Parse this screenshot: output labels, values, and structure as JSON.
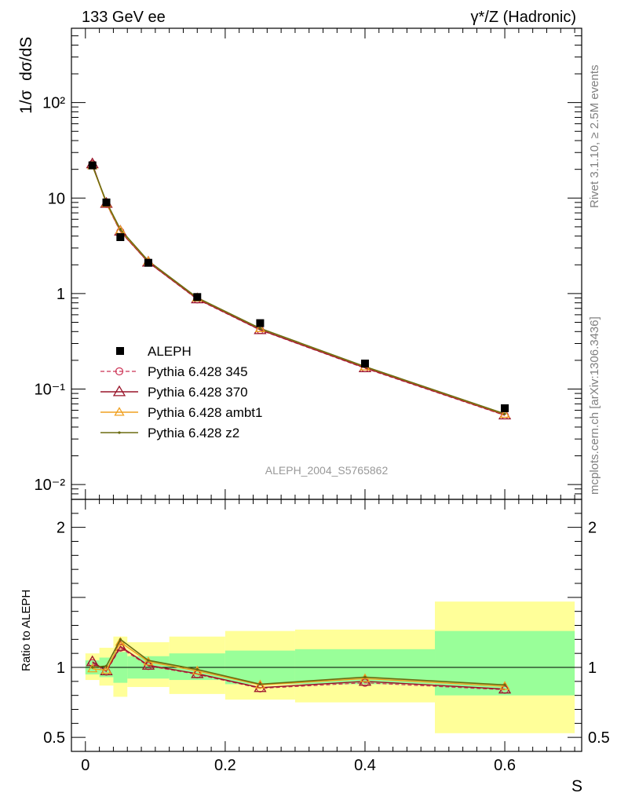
{
  "header": {
    "left_title": "133 GeV ee",
    "right_title": "γ*/Z (Hadronic)"
  },
  "side_text": {
    "rivet": "Rivet 3.1.10, ≥ 2.5M events",
    "mcplots": "mcplots.cern.ch [arXiv:1306.3436]"
  },
  "analysis_label": "ALEPH_2004_S5765862",
  "colors": {
    "data": "#000000",
    "p345": "#cc3355",
    "p370": "#99152a",
    "ambt1": "#f0a020",
    "z2": "#6b6b10",
    "band_inner": "#99ff99",
    "band_outer": "#ffff99"
  },
  "chart_data": [
    {
      "type": "line",
      "panel": "main",
      "ylabel": "1/σ  dσ/dS",
      "yscale": "log",
      "ylim": [
        0.007,
        600
      ],
      "xlim": [
        -0.02,
        0.71
      ],
      "y_tick_labels": [
        "10⁻²",
        "10⁻¹",
        "1",
        "10",
        "10²"
      ],
      "y_tick_values": [
        0.01,
        0.1,
        1,
        10,
        100
      ],
      "legend_placement": "lower-left",
      "x": [
        0.01,
        0.03,
        0.05,
        0.09,
        0.16,
        0.25,
        0.4,
        0.6
      ],
      "x_edges": [
        [
          0.0,
          0.02
        ],
        [
          0.02,
          0.04
        ],
        [
          0.04,
          0.06
        ],
        [
          0.06,
          0.12
        ],
        [
          0.12,
          0.2
        ],
        [
          0.2,
          0.3
        ],
        [
          0.3,
          0.5
        ],
        [
          0.5,
          0.7
        ]
      ],
      "series": [
        {
          "name": "ALEPH",
          "style": "data",
          "values": [
            22.0,
            9.0,
            3.9,
            2.1,
            0.92,
            0.49,
            0.185,
            0.063
          ]
        },
        {
          "name": "Pythia 6.428 345",
          "style": "p345",
          "values": [
            22.7,
            8.7,
            4.45,
            2.12,
            0.87,
            0.415,
            0.165,
            0.053
          ]
        },
        {
          "name": "Pythia 6.428 370",
          "style": "p370",
          "values": [
            22.8,
            8.8,
            4.5,
            2.13,
            0.88,
            0.418,
            0.167,
            0.0535
          ]
        },
        {
          "name": "Pythia 6.428 ambt1",
          "style": "ambt1",
          "values": [
            21.8,
            8.8,
            4.6,
            2.18,
            0.9,
            0.43,
            0.171,
            0.0545
          ]
        },
        {
          "name": "Pythia 6.428 z2",
          "style": "z2",
          "values": [
            21.9,
            9.1,
            4.7,
            2.2,
            0.905,
            0.432,
            0.172,
            0.055
          ]
        }
      ]
    },
    {
      "type": "line",
      "panel": "ratio",
      "ylabel": "Ratio to ALEPH",
      "xlabel": "S",
      "ylim": [
        0.4,
        2.2
      ],
      "xlim": [
        -0.02,
        0.71
      ],
      "y_tick_labels": [
        "0.5",
        "1",
        "2"
      ],
      "y_tick_values": [
        0.5,
        1,
        2
      ],
      "x_tick_labels": [
        "0",
        "0.2",
        "0.4",
        "0.6"
      ],
      "x_tick_values": [
        0,
        0.2,
        0.4,
        0.6
      ],
      "x": [
        0.01,
        0.03,
        0.05,
        0.09,
        0.16,
        0.25,
        0.4,
        0.6
      ],
      "bands": {
        "x_edges": [
          [
            0.0,
            0.02
          ],
          [
            0.02,
            0.04
          ],
          [
            0.04,
            0.06
          ],
          [
            0.06,
            0.12
          ],
          [
            0.12,
            0.2
          ],
          [
            0.2,
            0.3
          ],
          [
            0.3,
            0.5
          ],
          [
            0.5,
            0.7
          ]
        ],
        "inner": [
          [
            0.95,
            1.05
          ],
          [
            0.93,
            1.07
          ],
          [
            0.89,
            1.11
          ],
          [
            0.92,
            1.08
          ],
          [
            0.91,
            1.1
          ],
          [
            0.88,
            1.12
          ],
          [
            0.88,
            1.13
          ],
          [
            0.8,
            1.26
          ]
        ],
        "outer": [
          [
            0.91,
            1.1
          ],
          [
            0.87,
            1.14
          ],
          [
            0.79,
            1.22
          ],
          [
            0.86,
            1.18
          ],
          [
            0.81,
            1.22
          ],
          [
            0.77,
            1.26
          ],
          [
            0.75,
            1.27
          ],
          [
            0.53,
            1.47
          ]
        ]
      },
      "series": [
        {
          "name": "Pythia 6.428 345",
          "style": "p345",
          "values": [
            1.03,
            0.97,
            1.14,
            1.01,
            0.95,
            0.85,
            0.89,
            0.84
          ]
        },
        {
          "name": "Pythia 6.428 370",
          "style": "p370",
          "values": [
            1.04,
            0.975,
            1.15,
            1.015,
            0.955,
            0.855,
            0.9,
            0.845
          ]
        },
        {
          "name": "Pythia 6.428 ambt1",
          "style": "ambt1",
          "values": [
            0.99,
            0.98,
            1.18,
            1.04,
            0.975,
            0.875,
            0.92,
            0.865
          ]
        },
        {
          "name": "Pythia 6.428 z2",
          "style": "z2",
          "values": [
            1.0,
            1.01,
            1.2,
            1.05,
            0.985,
            0.88,
            0.93,
            0.875
          ]
        }
      ]
    }
  ]
}
